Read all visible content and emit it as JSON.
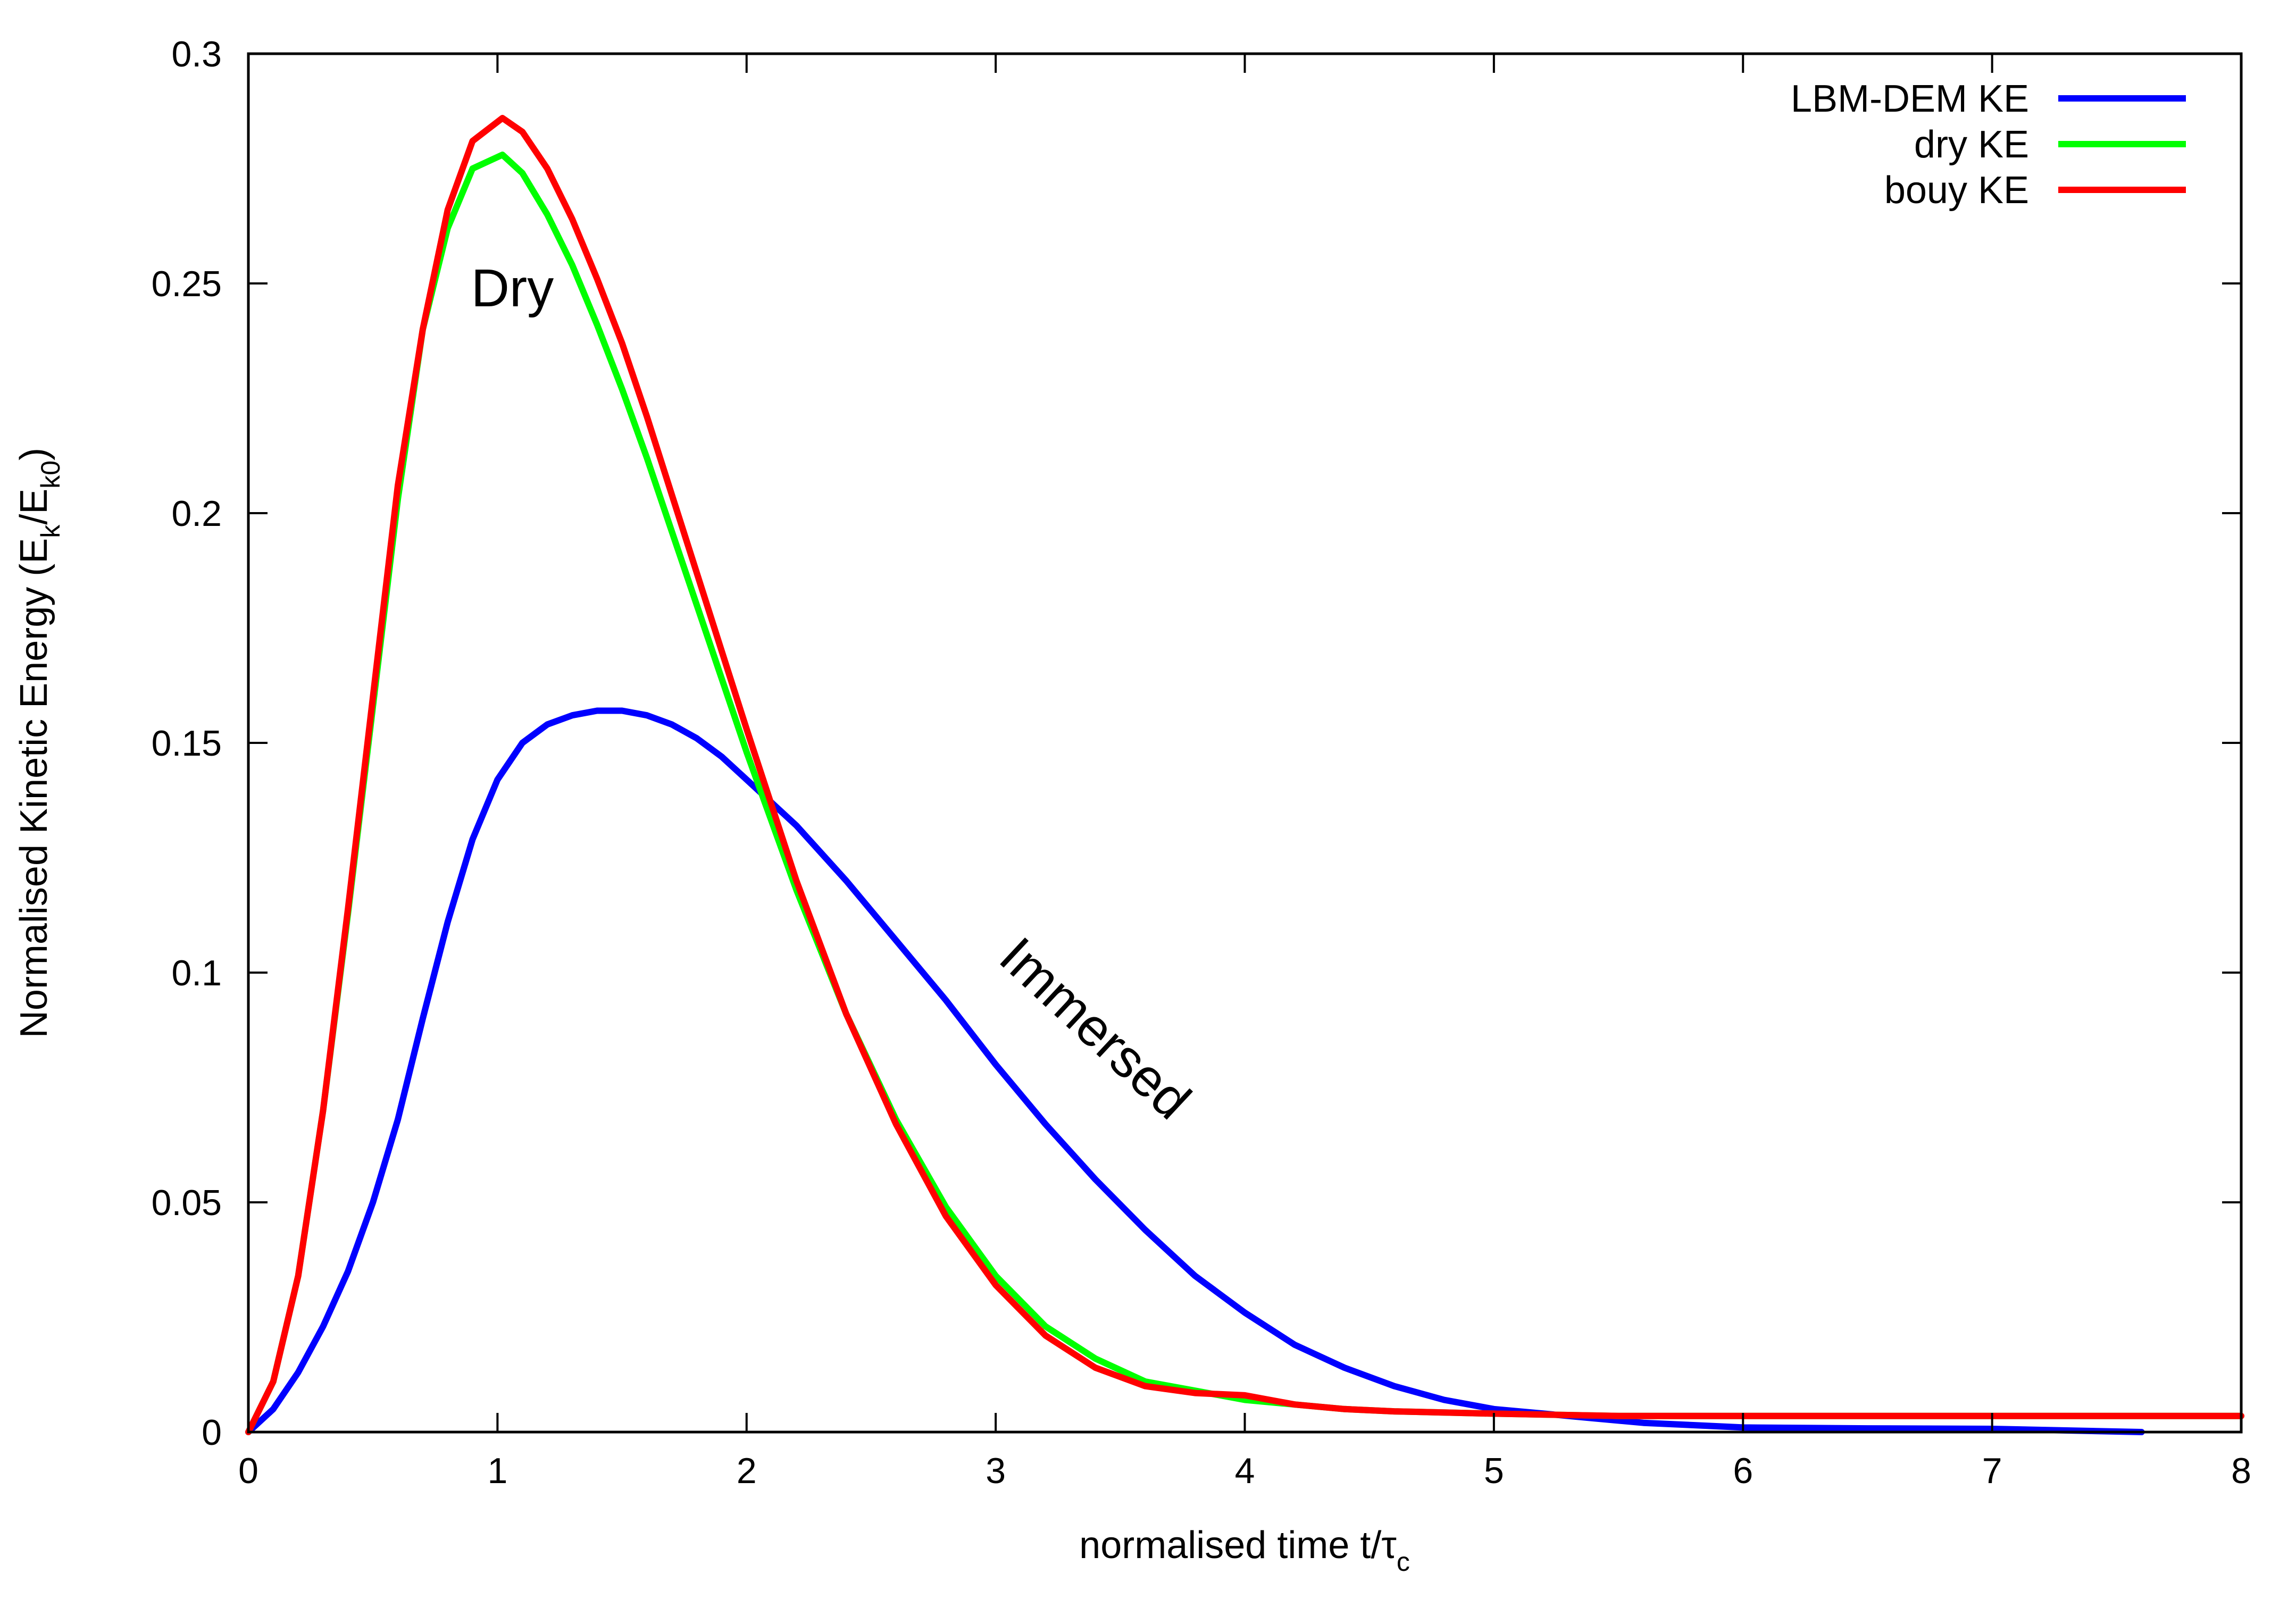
{
  "chart_data": {
    "type": "line",
    "title": "",
    "xlabel": {
      "main": "normalised time t/",
      "tau": "τ",
      "sub": "c"
    },
    "ylabel": {
      "main": "Normalised Kinetic Energy (E",
      "sub1": "k",
      "mid": "/E",
      "sub2": "k0",
      "end": ")"
    },
    "xlim": [
      0,
      8
    ],
    "ylim": [
      0,
      0.3
    ],
    "x_ticks": [
      0,
      1,
      2,
      3,
      4,
      5,
      6,
      7,
      8
    ],
    "x_tick_labels": [
      "0",
      "1",
      "2",
      "3",
      "4",
      "5",
      "6",
      "7",
      "8"
    ],
    "y_ticks": [
      0,
      0.05,
      0.1,
      0.15,
      0.2,
      0.25,
      0.3
    ],
    "y_tick_labels": [
      "0",
      "0.05",
      "0.1",
      "0.15",
      "0.2",
      "0.25",
      "0.3"
    ],
    "grid": false,
    "legend_position": "top-right",
    "series": [
      {
        "name": "LBM-DEM KE",
        "color": "#0000ff",
        "x": [
          0,
          0.1,
          0.2,
          0.3,
          0.4,
          0.5,
          0.6,
          0.7,
          0.8,
          0.9,
          1.0,
          1.1,
          1.2,
          1.3,
          1.4,
          1.5,
          1.6,
          1.7,
          1.8,
          1.9,
          2.0,
          2.2,
          2.4,
          2.6,
          2.8,
          3.0,
          3.2,
          3.4,
          3.6,
          3.8,
          4.0,
          4.2,
          4.4,
          4.6,
          4.8,
          5.0,
          5.2,
          5.4,
          5.6,
          5.8,
          6.0,
          6.5,
          7.0,
          7.6
        ],
        "y": [
          0,
          0.005,
          0.013,
          0.023,
          0.035,
          0.05,
          0.068,
          0.09,
          0.111,
          0.129,
          0.142,
          0.15,
          0.154,
          0.156,
          0.157,
          0.157,
          0.156,
          0.154,
          0.151,
          0.147,
          0.142,
          0.132,
          0.12,
          0.107,
          0.094,
          0.08,
          0.067,
          0.055,
          0.044,
          0.034,
          0.026,
          0.019,
          0.014,
          0.01,
          0.007,
          0.005,
          0.004,
          0.003,
          0.002,
          0.0015,
          0.001,
          0.0008,
          0.0007,
          0
        ]
      },
      {
        "name": "dry KE",
        "color": "#00ff00",
        "x": [
          0,
          0.1,
          0.2,
          0.3,
          0.4,
          0.5,
          0.6,
          0.7,
          0.8,
          0.9,
          1.02,
          1.1,
          1.2,
          1.3,
          1.4,
          1.5,
          1.6,
          1.7,
          1.8,
          1.9,
          2.0,
          2.2,
          2.4,
          2.6,
          2.8,
          3.0,
          3.2,
          3.4,
          3.6,
          3.8,
          4.0,
          4.2,
          4.4,
          4.6,
          5.0,
          5.5,
          6.0,
          7.0,
          8.0
        ],
        "y": [
          0,
          0.011,
          0.034,
          0.07,
          0.113,
          0.158,
          0.203,
          0.24,
          0.262,
          0.275,
          0.278,
          0.274,
          0.265,
          0.254,
          0.241,
          0.227,
          0.212,
          0.196,
          0.18,
          0.164,
          0.148,
          0.118,
          0.091,
          0.068,
          0.049,
          0.034,
          0.023,
          0.016,
          0.011,
          0.009,
          0.007,
          0.006,
          0.005,
          0.0045,
          0.004,
          0.0035,
          0.0035,
          0.0035,
          0.0035
        ]
      },
      {
        "name": "bouy KE",
        "color": "#ff0000",
        "x": [
          0,
          0.1,
          0.2,
          0.3,
          0.4,
          0.5,
          0.6,
          0.7,
          0.8,
          0.9,
          1.02,
          1.1,
          1.2,
          1.3,
          1.4,
          1.5,
          1.6,
          1.7,
          1.8,
          1.9,
          2.0,
          2.2,
          2.4,
          2.6,
          2.8,
          3.0,
          3.2,
          3.4,
          3.6,
          3.8,
          4.0,
          4.2,
          4.4,
          4.6,
          5.0,
          5.5,
          6.0,
          7.0,
          8.0
        ],
        "y": [
          0,
          0.011,
          0.034,
          0.07,
          0.114,
          0.16,
          0.206,
          0.24,
          0.266,
          0.281,
          0.286,
          0.283,
          0.275,
          0.264,
          0.251,
          0.237,
          0.221,
          0.204,
          0.187,
          0.17,
          0.153,
          0.12,
          0.091,
          0.067,
          0.047,
          0.032,
          0.021,
          0.014,
          0.01,
          0.0085,
          0.008,
          0.006,
          0.005,
          0.0045,
          0.004,
          0.0035,
          0.0035,
          0.0035,
          0.0035
        ]
      }
    ],
    "annotations": [
      {
        "text": "Dry",
        "x": 1.06,
        "y": 0.245,
        "rotation": 0
      },
      {
        "text": "Immersed",
        "x": 3.35,
        "y": 0.085,
        "rotation": 43
      }
    ]
  }
}
